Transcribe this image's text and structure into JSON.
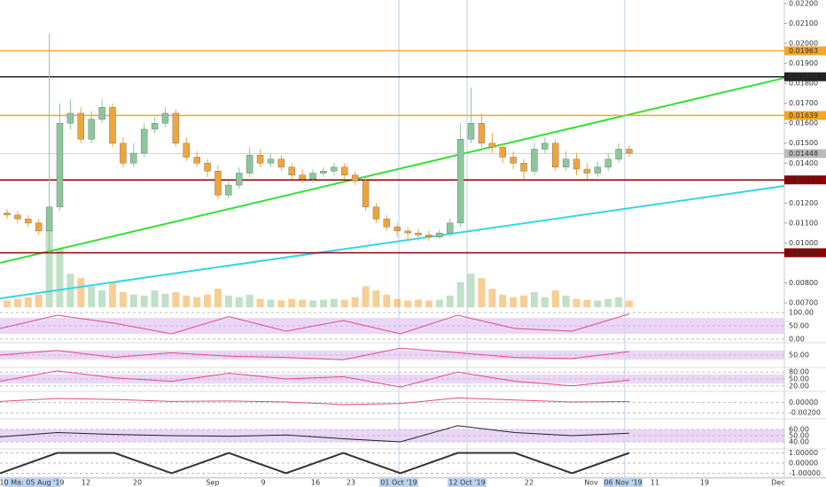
{
  "chart_data": {
    "type": "candlestick",
    "up_color": "#8cc79b",
    "down_color": "#f0a53a",
    "ylim": [
      0.007,
      0.022
    ],
    "yticks": [
      {
        "value": 0.022,
        "label": "0.02200"
      },
      {
        "value": 0.021,
        "label": "0.02100"
      },
      {
        "value": 0.02,
        "label": "0.02000"
      },
      {
        "value": 0.019,
        "label": "0.01900"
      },
      {
        "value": 0.018,
        "label": "0.01800"
      },
      {
        "value": 0.017,
        "label": "0.01700"
      },
      {
        "value": 0.016,
        "label": "0.01600"
      },
      {
        "value": 0.015,
        "label": "0.01500"
      },
      {
        "value": 0.014,
        "label": "0.01400"
      },
      {
        "value": 0.012,
        "label": "0.01200"
      },
      {
        "value": 0.011,
        "label": "0.01100"
      },
      {
        "value": 0.01,
        "label": "0.01000"
      },
      {
        "value": 0.008,
        "label": "0.00800"
      },
      {
        "value": 0.007,
        "label": "0.00700"
      }
    ],
    "levels": [
      {
        "value": 0.01963,
        "color": "#f5a623"
      },
      {
        "value": 0.01833,
        "color": "#222222"
      },
      {
        "value": 0.01639,
        "color": "#f5a623"
      },
      {
        "value": 0.01448,
        "color": "#bbbbbb"
      },
      {
        "value": 0.01316,
        "color": "#8b0000"
      },
      {
        "value": 0.00951,
        "color": "#8b0000"
      }
    ],
    "trendlines": [
      {
        "color": "#33e033",
        "start": 0.009,
        "end": 0.01827
      },
      {
        "color": "#33d6e6",
        "start": 0.00722,
        "end": 0.01286
      }
    ],
    "open": [
      0.0115,
      0.0114,
      0.0112,
      0.011,
      0.0106,
      0.0118,
      0.016,
      0.0165,
      0.0152,
      0.0162,
      0.0168,
      0.015,
      0.014,
      0.0145,
      0.0157,
      0.016,
      0.0165,
      0.015,
      0.0143,
      0.014,
      0.0136,
      0.0124,
      0.0129,
      0.0135,
      0.0144,
      0.014,
      0.0142,
      0.0138,
      0.0134,
      0.0132,
      0.0135,
      0.0136,
      0.0138,
      0.0134,
      0.0131,
      0.0118,
      0.0112,
      0.0108,
      0.0106,
      0.0105,
      0.0104,
      0.0103,
      0.0105,
      0.011,
      0.0152,
      0.016,
      0.015,
      0.0148,
      0.0143,
      0.014,
      0.0136,
      0.0147,
      0.015,
      0.0138,
      0.0142,
      0.0137,
      0.0135,
      0.0138,
      0.0142,
      0.0147
    ],
    "high": [
      0.0117,
      0.0116,
      0.0114,
      0.0112,
      0.0205,
      0.017,
      0.0172,
      0.0168,
      0.0166,
      0.0172,
      0.017,
      0.0153,
      0.015,
      0.016,
      0.0163,
      0.0168,
      0.0167,
      0.0153,
      0.0146,
      0.0142,
      0.0139,
      0.0131,
      0.0138,
      0.0148,
      0.0147,
      0.0145,
      0.0144,
      0.014,
      0.0137,
      0.0137,
      0.0138,
      0.014,
      0.014,
      0.0136,
      0.0133,
      0.012,
      0.0114,
      0.011,
      0.0108,
      0.0107,
      0.0106,
      0.0107,
      0.0112,
      0.016,
      0.0178,
      0.0165,
      0.0155,
      0.015,
      0.0146,
      0.0142,
      0.015,
      0.0153,
      0.0152,
      0.0146,
      0.0145,
      0.014,
      0.0141,
      0.0145,
      0.015,
      0.0149
    ],
    "low": [
      0.0112,
      0.011,
      0.0108,
      0.0104,
      0.0095,
      0.0116,
      0.0157,
      0.015,
      0.015,
      0.016,
      0.0148,
      0.0138,
      0.0138,
      0.0143,
      0.0155,
      0.0158,
      0.0148,
      0.0141,
      0.0138,
      0.0133,
      0.0122,
      0.0122,
      0.0127,
      0.0133,
      0.0138,
      0.0138,
      0.0136,
      0.0132,
      0.013,
      0.013,
      0.0133,
      0.0134,
      0.0132,
      0.0129,
      0.0116,
      0.011,
      0.0106,
      0.0103,
      0.0102,
      0.0101,
      0.0101,
      0.0102,
      0.0103,
      0.0108,
      0.015,
      0.0148,
      0.0145,
      0.014,
      0.0137,
      0.0132,
      0.0134,
      0.0145,
      0.0136,
      0.0136,
      0.0134,
      0.0132,
      0.0133,
      0.0136,
      0.014,
      0.0143
    ],
    "close": [
      0.0114,
      0.0112,
      0.011,
      0.0106,
      0.0118,
      0.016,
      0.0165,
      0.0152,
      0.0162,
      0.0168,
      0.015,
      0.014,
      0.0145,
      0.0157,
      0.016,
      0.0165,
      0.015,
      0.0143,
      0.014,
      0.0136,
      0.0124,
      0.0129,
      0.0135,
      0.0144,
      0.014,
      0.0142,
      0.0138,
      0.0134,
      0.0132,
      0.0135,
      0.0136,
      0.0138,
      0.0134,
      0.0131,
      0.0118,
      0.0112,
      0.0108,
      0.0106,
      0.0105,
      0.0104,
      0.0103,
      0.0105,
      0.011,
      0.0152,
      0.016,
      0.015,
      0.0148,
      0.0143,
      0.014,
      0.0136,
      0.0147,
      0.015,
      0.0138,
      0.0142,
      0.0137,
      0.0135,
      0.0138,
      0.0142,
      0.0147,
      0.0145
    ],
    "volume": [
      8,
      10,
      12,
      15,
      95,
      70,
      40,
      35,
      25,
      20,
      30,
      18,
      15,
      14,
      20,
      16,
      18,
      14,
      12,
      15,
      22,
      14,
      12,
      15,
      10,
      9,
      8,
      10,
      9,
      8,
      9,
      10,
      9,
      12,
      25,
      20,
      15,
      10,
      8,
      9,
      8,
      9,
      14,
      30,
      40,
      35,
      22,
      15,
      12,
      14,
      18,
      12,
      20,
      14,
      10,
      9,
      8,
      10,
      12,
      8
    ],
    "x_labels": [
      "10 Ma: 05 Aug '19",
      "12",
      "20",
      "Sep",
      "9",
      "16",
      "23",
      "01 Oct '19",
      "12 Oct '19",
      "22",
      "Nov",
      "06 Nov '19",
      "11",
      "19",
      "Dec"
    ],
    "panels": [
      {
        "ylim": [
          -10,
          110
        ],
        "yticks": [
          {
            "value": 100,
            "label": "100.00"
          },
          {
            "value": 50,
            "label": "50.00"
          },
          {
            "value": 0,
            "label": "0.00"
          }
        ],
        "band": [
          20,
          80
        ],
        "color": "#e04a8a",
        "values": [
          40,
          90,
          60,
          20,
          85,
          30,
          70,
          20,
          90,
          40,
          30,
          95
        ]
      },
      {
        "ylim": [
          0,
          100
        ],
        "yticks": [
          {
            "value": 50,
            "label": "50.00"
          }
        ],
        "band": [
          30,
          70
        ],
        "color": "#e04a8a",
        "values": [
          50,
          70,
          40,
          60,
          45,
          40,
          30,
          80,
          60,
          40,
          35,
          65
        ]
      },
      {
        "ylim": [
          0,
          100
        ],
        "yticks": [
          {
            "value": 80,
            "label": "80.00"
          },
          {
            "value": 50,
            "label": "50.00"
          },
          {
            "value": 20,
            "label": "20.00"
          }
        ],
        "band": [
          30,
          70
        ],
        "color": "#e04a8a",
        "values": [
          40,
          85,
          55,
          40,
          75,
          50,
          60,
          15,
          80,
          40,
          20,
          45
        ]
      },
      {
        "ylim": [
          -0.003,
          0.002
        ],
        "yticks": [
          {
            "value": 0,
            "label": "0.00000"
          },
          {
            "value": -0.002,
            "label": "-0.00200"
          }
        ],
        "color": "#e04a8a",
        "values": [
          0.0002,
          0.0008,
          0.0006,
          0.0002,
          0.0003,
          0.0001,
          -0.0004,
          -0.0002,
          0.0009,
          0.0005,
          0.0001,
          0.0002
        ]
      },
      {
        "ylim": [
          30,
          70
        ],
        "yticks": [
          {
            "value": 60,
            "label": "60.00"
          },
          {
            "value": 50,
            "label": "50.00"
          },
          {
            "value": 40,
            "label": "40.00"
          }
        ],
        "band": [
          40,
          60
        ],
        "color": "#222222",
        "values": [
          48,
          55,
          52,
          50,
          49,
          51,
          45,
          40,
          66,
          55,
          50,
          54
        ]
      },
      {
        "ylim": [
          -1.3,
          1.3
        ],
        "yticks": [
          {
            "value": 1,
            "label": "1.00000"
          },
          {
            "value": 0,
            "label": "0.00000"
          },
          {
            "value": -1,
            "label": "-1.00000"
          }
        ],
        "color": "#333333",
        "values": [
          -1,
          1,
          1,
          -1,
          1,
          -1,
          1,
          -1,
          1,
          1,
          -1,
          1
        ]
      }
    ]
  }
}
